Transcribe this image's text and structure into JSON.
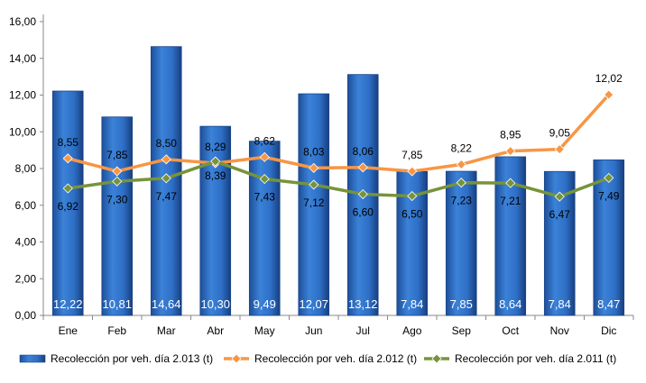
{
  "chart_data": {
    "type": "bar",
    "categories": [
      "Ene",
      "Feb",
      "Mar",
      "Abr",
      "May",
      "Jun",
      "Jul",
      "Ago",
      "Sep",
      "Oct",
      "Nov",
      "Dic"
    ],
    "ylim": [
      0,
      16
    ],
    "yticks": [
      "0,00",
      "2,00",
      "4,00",
      "6,00",
      "8,00",
      "10,00",
      "12,00",
      "14,00",
      "16,00"
    ],
    "series": [
      {
        "name": "Recolección por veh. día 2.013 (t)",
        "kind": "bar",
        "color": "#2e6fc6",
        "values": [
          12.22,
          10.81,
          14.64,
          10.3,
          9.49,
          12.07,
          13.12,
          7.84,
          7.85,
          8.64,
          7.84,
          8.47
        ],
        "labels": [
          "12,22",
          "10,81",
          "14,64",
          "10,30",
          "9,49",
          "12,07",
          "13,12",
          "7,84",
          "7,85",
          "8,64",
          "7,84",
          "8,47"
        ]
      },
      {
        "name": "Recolección por veh. día 2.012 (t)",
        "kind": "line",
        "color": "#f79646",
        "values": [
          8.55,
          7.85,
          8.5,
          8.29,
          8.62,
          8.03,
          8.06,
          7.85,
          8.22,
          8.95,
          9.05,
          12.02
        ],
        "labels": [
          "8,55",
          "7,85",
          "8,50",
          "8,29",
          "8,62",
          "8,03",
          "8,06",
          "7,85",
          "8,22",
          "8,95",
          "9,05",
          "12,02"
        ]
      },
      {
        "name": "Recolección por veh. día 2.011 (t)",
        "kind": "line",
        "color": "#77933c",
        "values": [
          6.92,
          7.3,
          7.47,
          8.39,
          7.43,
          7.12,
          6.6,
          6.5,
          7.23,
          7.21,
          6.47,
          7.49
        ],
        "labels": [
          "6,92",
          "7,30",
          "7,47",
          "8,39",
          "7,43",
          "7,12",
          "6,60",
          "6,50",
          "7,23",
          "7,21",
          "6,47",
          "7,49"
        ]
      }
    ],
    "legend": "bottom",
    "grid": false
  }
}
